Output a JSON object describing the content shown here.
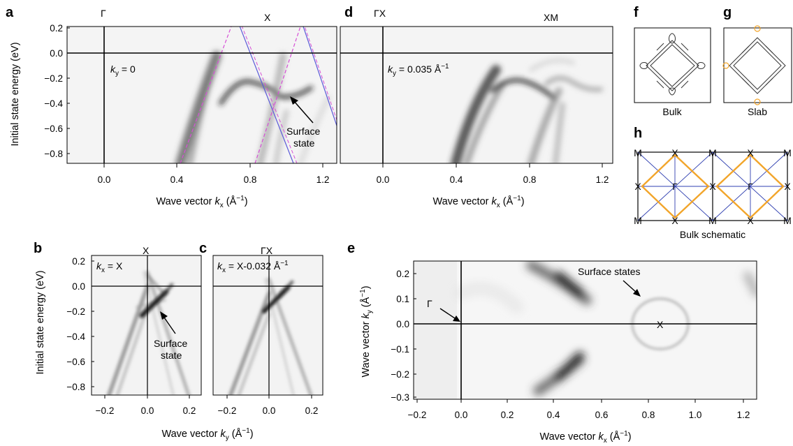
{
  "panel_letters": [
    "a",
    "b",
    "c",
    "d",
    "e",
    "f",
    "g",
    "h"
  ],
  "panel_a": {
    "top_labels": {
      "gamma": "Γ",
      "x": "X"
    },
    "annotation": {
      "var": "k",
      "sub": "y",
      "text": " = 0"
    },
    "callout": {
      "line1": "Surface",
      "line2": "state"
    },
    "ylabel": "Initial state energy (eV)",
    "xlabel": {
      "pre": "Wave vector ",
      "var": "k",
      "sub": "x",
      "post": " (Å",
      "sup": "−1",
      "end": ")"
    },
    "xticks": [
      "0.0",
      "0.4",
      "0.8",
      "1.2"
    ],
    "yticks": [
      "0.2",
      "0.0",
      "−0.2",
      "−0.4",
      "−0.6",
      "−0.8"
    ],
    "guide_colors": {
      "magenta": "#d64fd6",
      "blue": "#5a5ad8"
    }
  },
  "panel_d": {
    "top_labels": {
      "gx": "ΓX",
      "xm": "XM"
    },
    "annotation": {
      "var": "k",
      "sub": "y",
      "text": " = 0.035 Å",
      "sup": "−1"
    },
    "xlabel": {
      "pre": "Wave vector ",
      "var": "k",
      "sub": "x",
      "post": " (Å",
      "sup": "−1",
      "end": ")"
    },
    "xticks": [
      "0.0",
      "0.4",
      "0.8",
      "1.2"
    ]
  },
  "panel_b": {
    "top_label": "X",
    "annotation": {
      "var": "k",
      "sub": "x",
      "text": " = X"
    },
    "callout": {
      "line1": "Surface",
      "line2": "state"
    },
    "ylabel": "Initial state energy (eV)",
    "xticks": [
      "−0.2",
      "0.0",
      "0.2"
    ],
    "yticks": [
      "0.2",
      "0.0",
      "−0.2",
      "−0.4",
      "−0.6",
      "−0.8"
    ]
  },
  "panel_c": {
    "top_label": "ΓX",
    "annotation": {
      "var": "k",
      "sub": "x",
      "text": " = X-0.032 Å",
      "sup": "−1"
    },
    "xticks": [
      "−0.2",
      "0.0",
      "0.2"
    ]
  },
  "bc_xlabel": {
    "pre": "Wave vector ",
    "var": "k",
    "sub": "y",
    "post": " (Å",
    "sup": "−1",
    "end": ")"
  },
  "panel_e": {
    "callout": "Surface states",
    "gamma": "Γ",
    "x_mark": "X",
    "ylabel": {
      "pre": "Wave vector ",
      "var": "k",
      "sub": "y",
      "post": " (Å",
      "sup": "−1",
      "end": ")"
    },
    "xlabel": {
      "pre": "Wave vector ",
      "var": "k",
      "sub": "x",
      "post": " (Å",
      "sup": "−1",
      "end": ")"
    },
    "xticks": [
      "−0.2",
      "0.0",
      "0.2",
      "0.4",
      "0.6",
      "0.8",
      "1.0",
      "1.2"
    ],
    "yticks": [
      "0.2",
      "0.1",
      "0.0",
      "−0.1",
      "−0.2",
      "−0.3"
    ]
  },
  "panel_f": {
    "caption": "Bulk"
  },
  "panel_g": {
    "caption": "Slab"
  },
  "panel_h": {
    "caption": "Bulk schematic",
    "top_labels": [
      "M",
      "X",
      "M",
      "X",
      "M"
    ],
    "mid_labels": [
      "X",
      "Γ",
      "X",
      "Γ",
      "X"
    ],
    "bottom_labels": [
      "M",
      "X",
      "M",
      "X",
      "M"
    ],
    "colors": {
      "square": "#f2a52a",
      "lines": "#2f3fb0"
    }
  }
}
